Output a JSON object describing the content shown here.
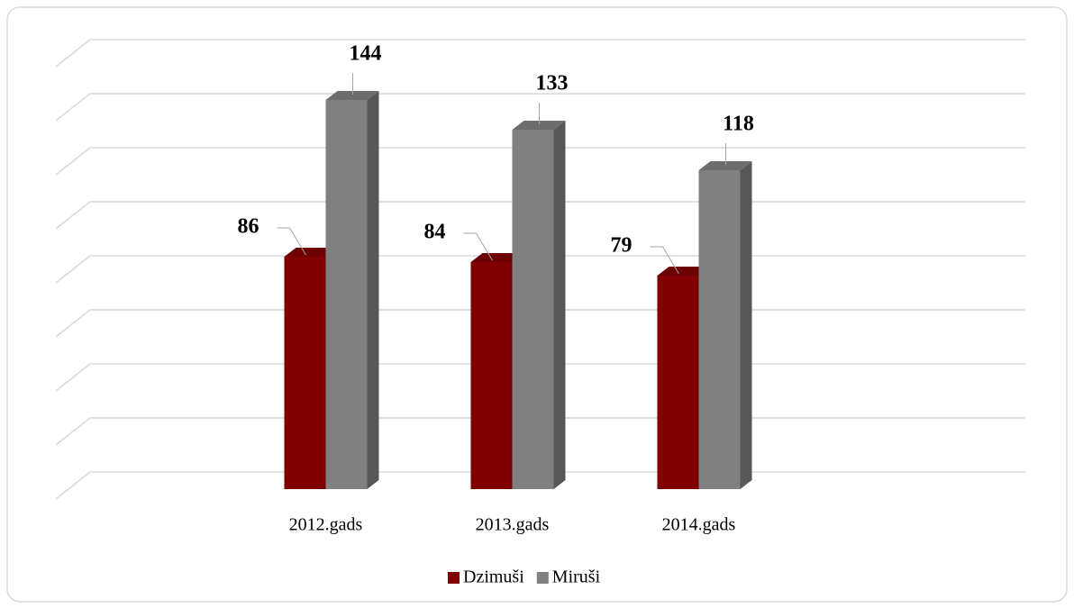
{
  "chart_data": {
    "type": "bar3d",
    "categories": [
      "2012.gads",
      "2013.gads",
      "2014.gads"
    ],
    "series": [
      {
        "name": "Dzimuši",
        "color": "#800000",
        "values": [
          86,
          84,
          79
        ]
      },
      {
        "name": "Miruši",
        "color": "#808080",
        "values": [
          144,
          133,
          118
        ]
      }
    ],
    "ylim": [
      0,
      160
    ],
    "yticks": [
      0,
      20,
      40,
      60,
      80,
      100,
      120,
      140,
      160
    ],
    "grid": true,
    "legend": "bottom"
  }
}
